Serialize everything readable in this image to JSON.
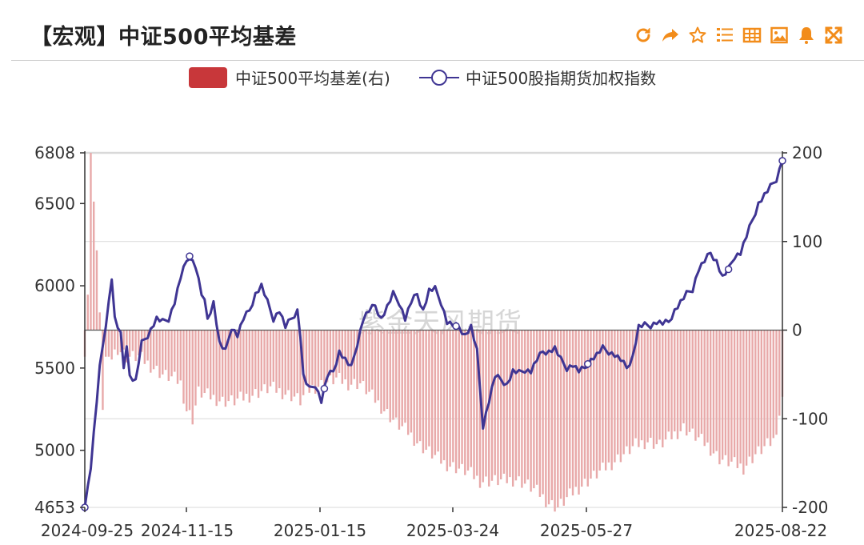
{
  "header": {
    "title": "【宏观】中证500平均基差",
    "tools": [
      {
        "name": "refresh-icon"
      },
      {
        "name": "share-icon"
      },
      {
        "name": "star-icon"
      },
      {
        "name": "list-icon"
      },
      {
        "name": "table-icon"
      },
      {
        "name": "image-icon"
      },
      {
        "name": "bell-icon"
      },
      {
        "name": "fullscreen-icon"
      }
    ],
    "tool_color": "#f28c1a"
  },
  "watermark": "紫金天风期货",
  "chart_data": {
    "type": "bar+line",
    "title": "【宏观】中证500平均基差",
    "legend": [
      {
        "name": "中证500平均基差(右)",
        "kind": "bar",
        "color": "#c8373a"
      },
      {
        "name": "中证500股指期货加权指数",
        "kind": "line",
        "color": "#3f3593"
      }
    ],
    "legend_position": "top-center",
    "grid": true,
    "x_ticks": [
      "2024-09-25",
      "2024-11-15",
      "2025-01-15",
      "2025-03-24",
      "2025-05-27",
      "2025-08-22"
    ],
    "left_axis": {
      "min": 4653,
      "max": 6808,
      "ticks": [
        6808,
        6500,
        6000,
        5500,
        5000,
        4653
      ]
    },
    "right_axis": {
      "min": -200,
      "max": 200,
      "ticks": [
        200,
        100,
        0,
        -100,
        -200
      ]
    },
    "series": [
      {
        "name": "中证500股指期货加权指数",
        "axis": "left",
        "keypoints": [
          [
            0,
            4653
          ],
          [
            2,
            4900
          ],
          [
            5,
            5500
          ],
          [
            8,
            5900
          ],
          [
            9,
            6050
          ],
          [
            10,
            5800
          ],
          [
            12,
            5700
          ],
          [
            13,
            5500
          ],
          [
            14,
            5650
          ],
          [
            15,
            5450
          ],
          [
            17,
            5420
          ],
          [
            19,
            5650
          ],
          [
            21,
            5700
          ],
          [
            24,
            5800
          ],
          [
            26,
            5780
          ],
          [
            28,
            5800
          ],
          [
            30,
            5900
          ],
          [
            32,
            6050
          ],
          [
            34,
            6150
          ],
          [
            35,
            6180
          ],
          [
            37,
            6120
          ],
          [
            39,
            5950
          ],
          [
            40,
            5900
          ],
          [
            41,
            5800
          ],
          [
            43,
            5900
          ],
          [
            45,
            5650
          ],
          [
            47,
            5600
          ],
          [
            49,
            5750
          ],
          [
            51,
            5700
          ],
          [
            53,
            5800
          ],
          [
            55,
            5850
          ],
          [
            57,
            5950
          ],
          [
            59,
            6000
          ],
          [
            61,
            5900
          ],
          [
            63,
            5800
          ],
          [
            65,
            5850
          ],
          [
            67,
            5750
          ],
          [
            69,
            5800
          ],
          [
            71,
            5850
          ],
          [
            72,
            5700
          ],
          [
            73,
            5450
          ],
          [
            75,
            5370
          ],
          [
            77,
            5400
          ],
          [
            79,
            5300
          ],
          [
            81,
            5450
          ],
          [
            83,
            5480
          ],
          [
            85,
            5600
          ],
          [
            87,
            5550
          ],
          [
            89,
            5500
          ],
          [
            91,
            5650
          ],
          [
            93,
            5800
          ],
          [
            95,
            5850
          ],
          [
            97,
            5880
          ],
          [
            99,
            5800
          ],
          [
            101,
            5870
          ],
          [
            103,
            5950
          ],
          [
            105,
            5900
          ],
          [
            107,
            5800
          ],
          [
            109,
            5900
          ],
          [
            111,
            5950
          ],
          [
            113,
            5850
          ],
          [
            115,
            5970
          ],
          [
            117,
            5980
          ],
          [
            119,
            5900
          ],
          [
            121,
            5780
          ],
          [
            123,
            5760
          ],
          [
            125,
            5750
          ],
          [
            127,
            5700
          ],
          [
            129,
            5750
          ],
          [
            131,
            5600
          ],
          [
            133,
            5150
          ],
          [
            135,
            5300
          ],
          [
            137,
            5450
          ],
          [
            139,
            5430
          ],
          [
            141,
            5400
          ],
          [
            143,
            5480
          ],
          [
            145,
            5470
          ],
          [
            147,
            5490
          ],
          [
            149,
            5480
          ],
          [
            151,
            5550
          ],
          [
            153,
            5600
          ],
          [
            155,
            5600
          ],
          [
            157,
            5620
          ],
          [
            159,
            5550
          ],
          [
            161,
            5500
          ],
          [
            163,
            5520
          ],
          [
            165,
            5480
          ],
          [
            167,
            5500
          ],
          [
            169,
            5550
          ],
          [
            171,
            5580
          ],
          [
            173,
            5620
          ],
          [
            175,
            5600
          ],
          [
            177,
            5580
          ],
          [
            179,
            5550
          ],
          [
            181,
            5500
          ],
          [
            183,
            5570
          ],
          [
            185,
            5750
          ],
          [
            187,
            5760
          ],
          [
            189,
            5760
          ],
          [
            191,
            5780
          ],
          [
            193,
            5770
          ],
          [
            195,
            5780
          ],
          [
            197,
            5850
          ],
          [
            199,
            5900
          ],
          [
            201,
            5950
          ],
          [
            203,
            5980
          ],
          [
            205,
            6100
          ],
          [
            207,
            6150
          ],
          [
            209,
            6200
          ],
          [
            211,
            6150
          ],
          [
            213,
            6050
          ],
          [
            215,
            6100
          ],
          [
            217,
            6180
          ],
          [
            219,
            6200
          ],
          [
            221,
            6300
          ],
          [
            223,
            6400
          ],
          [
            225,
            6500
          ],
          [
            227,
            6550
          ],
          [
            229,
            6600
          ],
          [
            231,
            6650
          ],
          [
            233,
            6760
          ]
        ],
        "markers": [
          0,
          35,
          80,
          124,
          168,
          215,
          233
        ]
      },
      {
        "name": "中证500平均基差(右)",
        "axis": "right",
        "keypoints": [
          [
            0,
            -30
          ],
          [
            1,
            40
          ],
          [
            2,
            200
          ],
          [
            3,
            145
          ],
          [
            4,
            90
          ],
          [
            5,
            20
          ],
          [
            6,
            -90
          ],
          [
            7,
            -30
          ],
          [
            9,
            -30
          ],
          [
            11,
            -20
          ],
          [
            14,
            -30
          ],
          [
            18,
            -30
          ],
          [
            22,
            -40
          ],
          [
            26,
            -50
          ],
          [
            30,
            -55
          ],
          [
            32,
            -60
          ],
          [
            34,
            -90
          ],
          [
            36,
            -100
          ],
          [
            38,
            -70
          ],
          [
            42,
            -75
          ],
          [
            46,
            -80
          ],
          [
            50,
            -80
          ],
          [
            54,
            -75
          ],
          [
            58,
            -70
          ],
          [
            62,
            -65
          ],
          [
            66,
            -70
          ],
          [
            70,
            -75
          ],
          [
            72,
            -80
          ],
          [
            74,
            -70
          ],
          [
            76,
            -65
          ],
          [
            80,
            -60
          ],
          [
            84,
            -55
          ],
          [
            88,
            -60
          ],
          [
            92,
            -60
          ],
          [
            96,
            -75
          ],
          [
            100,
            -90
          ],
          [
            104,
            -105
          ],
          [
            108,
            -115
          ],
          [
            112,
            -130
          ],
          [
            116,
            -140
          ],
          [
            120,
            -150
          ],
          [
            124,
            -155
          ],
          [
            128,
            -160
          ],
          [
            132,
            -170
          ],
          [
            136,
            -170
          ],
          [
            140,
            -170
          ],
          [
            144,
            -168
          ],
          [
            148,
            -175
          ],
          [
            152,
            -185
          ],
          [
            155,
            -195
          ],
          [
            158,
            -200
          ],
          [
            161,
            -190
          ],
          [
            164,
            -180
          ],
          [
            168,
            -170
          ],
          [
            172,
            -160
          ],
          [
            176,
            -150
          ],
          [
            180,
            -140
          ],
          [
            184,
            -130
          ],
          [
            188,
            -125
          ],
          [
            192,
            -130
          ],
          [
            196,
            -120
          ],
          [
            200,
            -110
          ],
          [
            204,
            -120
          ],
          [
            208,
            -130
          ],
          [
            212,
            -145
          ],
          [
            216,
            -150
          ],
          [
            220,
            -155
          ],
          [
            224,
            -140
          ],
          [
            228,
            -130
          ],
          [
            230,
            -125
          ],
          [
            233,
            -80
          ]
        ]
      }
    ]
  }
}
